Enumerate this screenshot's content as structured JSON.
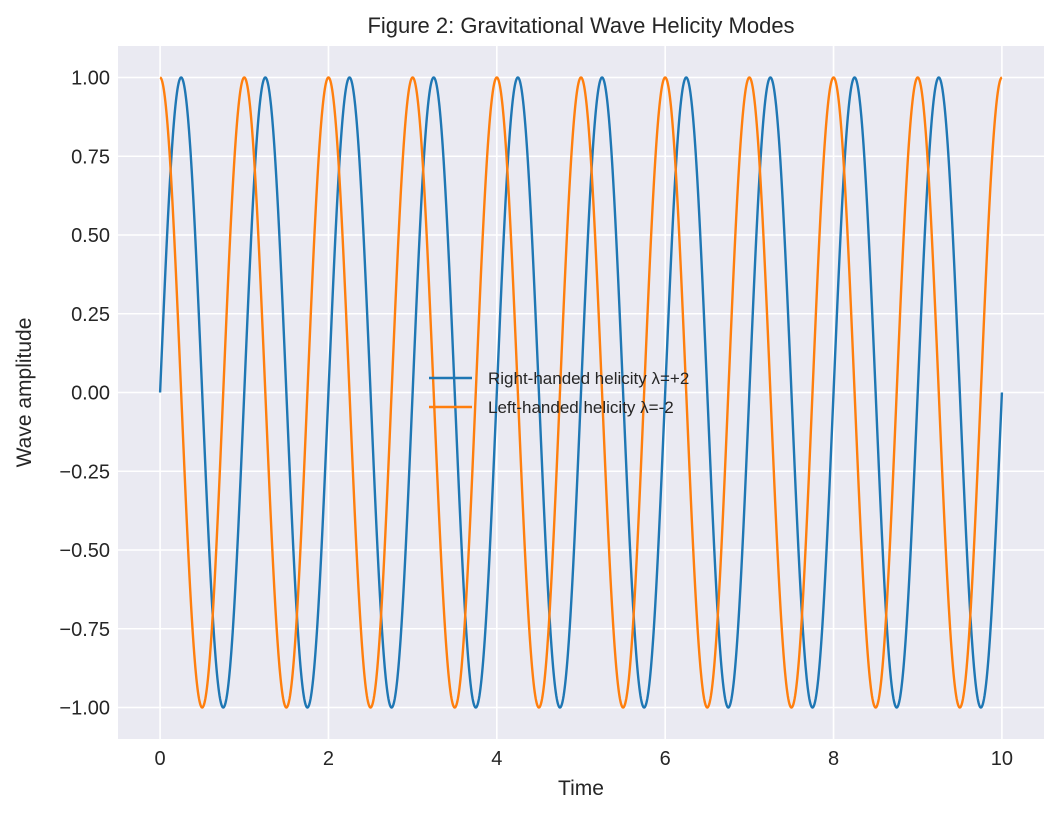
{
  "chart_data": {
    "type": "line",
    "title": "Figure 2: Gravitational Wave Helicity Modes",
    "xlabel": "Time",
    "ylabel": "Wave amplitude",
    "xlim": [
      -0.5,
      10.5
    ],
    "ylim": [
      -1.1,
      1.1
    ],
    "xticks": [
      0,
      2,
      4,
      6,
      8,
      10
    ],
    "xtick_labels": [
      "0",
      "2",
      "4",
      "6",
      "8",
      "10"
    ],
    "yticks": [
      -1.0,
      -0.75,
      -0.5,
      -0.25,
      0.0,
      0.25,
      0.5,
      0.75,
      1.0
    ],
    "ytick_labels": [
      "−1.00",
      "−0.75",
      "−0.50",
      "−0.25",
      "0.00",
      "0.25",
      "0.50",
      "0.75",
      "1.00"
    ],
    "grid": true,
    "legend_position": "center",
    "background": "#eaeaf2",
    "series": [
      {
        "name": "Right-handed helicity λ=+2",
        "function": "sin",
        "frequency_cycles_per_unit": 1.0,
        "amplitude": 1.0,
        "x_range": [
          0,
          10
        ],
        "color": "#1f77b4"
      },
      {
        "name": "Left-handed helicity λ=-2",
        "function": "cos",
        "frequency_cycles_per_unit": 1.0,
        "amplitude": 1.0,
        "x_range": [
          0,
          10
        ],
        "color": "#ff7f0e"
      }
    ]
  }
}
